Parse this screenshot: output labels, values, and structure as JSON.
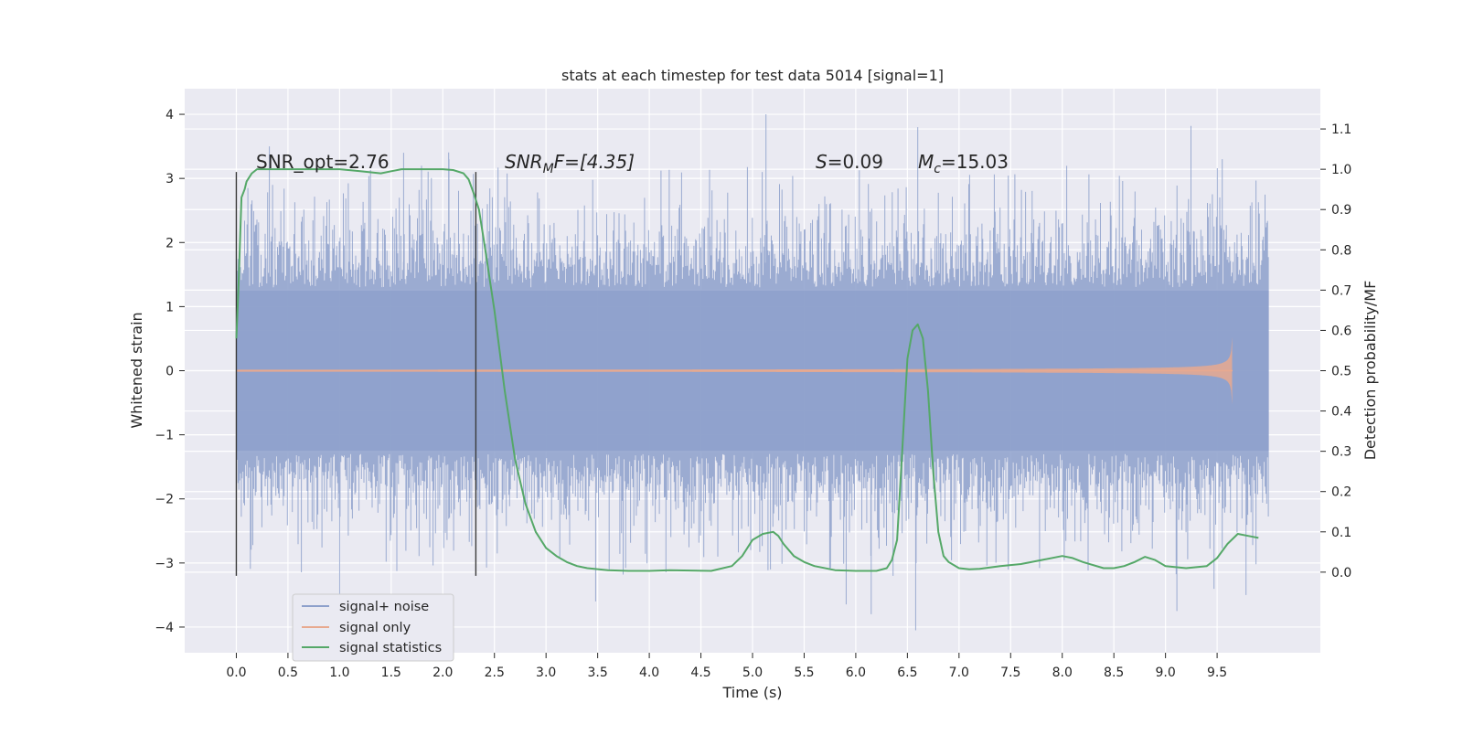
{
  "chart_data": {
    "type": "line",
    "title": "stats at each timestep for test data 5014 [signal=1]",
    "xlabel": "Time (s)",
    "ylabel": "Whitened strain",
    "ylabel_right": "Detection probability/MF",
    "xlim": [
      -0.5,
      10.5
    ],
    "ylim": [
      -4.4,
      4.4
    ],
    "ylim_right": [
      -0.2,
      1.2
    ],
    "grid": true,
    "legend_placement": "lower-left",
    "x_ticks": [
      "0.0",
      "0.5",
      "1.0",
      "1.5",
      "2.0",
      "2.5",
      "3.0",
      "3.5",
      "4.0",
      "4.5",
      "5.0",
      "5.5",
      "6.0",
      "6.5",
      "7.0",
      "7.5",
      "8.0",
      "8.5",
      "9.0",
      "9.5"
    ],
    "y_ticks_left": [
      "−4",
      "−3",
      "−2",
      "−1",
      "0",
      "1",
      "2",
      "3",
      "4"
    ],
    "y_ticks_right": [
      "0.0",
      "0.1",
      "0.2",
      "0.3",
      "0.4",
      "0.5",
      "0.6",
      "0.7",
      "0.8",
      "0.9",
      "1.0",
      "1.1"
    ],
    "annotations": {
      "snr_opt": "SNR_opt=2.76",
      "snr_mf_sym": "SNR",
      "snr_mf_sub": "M",
      "snr_mf_rest": "F=[4.35]",
      "s_sym": "S",
      "s_rest": "=0.09",
      "mc_sym": "M",
      "mc_sub": "c",
      "mc_rest": "=15.03"
    },
    "vertical_markers": [
      0.0,
      2.32
    ],
    "series": [
      {
        "name": "signal+ noise",
        "color": "#8da0cb",
        "kind": "noise",
        "x_range": [
          0.0,
          10.0
        ],
        "envelope_core": 1.25,
        "peak_max": 4.0,
        "peak_min": -4.05
      },
      {
        "name": "signal only",
        "color": "#e8a98f",
        "kind": "chirp",
        "x_range": [
          0.0,
          9.65
        ],
        "amplitude_max": 0.58
      },
      {
        "name": "signal statistics",
        "color": "#55a868",
        "kind": "line",
        "axis": "right",
        "x": [
          0.0,
          0.02,
          0.05,
          0.08,
          0.1,
          0.15,
          0.2,
          0.3,
          0.5,
          0.8,
          1.0,
          1.2,
          1.4,
          1.5,
          1.6,
          1.8,
          2.0,
          2.1,
          2.2,
          2.25,
          2.3,
          2.35,
          2.4,
          2.5,
          2.6,
          2.7,
          2.8,
          2.9,
          3.0,
          3.1,
          3.2,
          3.3,
          3.4,
          3.6,
          3.8,
          4.0,
          4.2,
          4.4,
          4.6,
          4.8,
          4.9,
          5.0,
          5.1,
          5.2,
          5.25,
          5.3,
          5.4,
          5.5,
          5.6,
          5.8,
          6.0,
          6.2,
          6.3,
          6.35,
          6.4,
          6.45,
          6.5,
          6.55,
          6.6,
          6.65,
          6.7,
          6.75,
          6.8,
          6.85,
          6.9,
          7.0,
          7.1,
          7.2,
          7.4,
          7.6,
          7.8,
          8.0,
          8.1,
          8.2,
          8.4,
          8.5,
          8.6,
          8.7,
          8.8,
          8.9,
          9.0,
          9.2,
          9.4,
          9.5,
          9.6,
          9.7,
          9.8,
          9.9
        ],
        "values": [
          0.58,
          0.7,
          0.93,
          0.95,
          0.97,
          0.99,
          1.0,
          1.0,
          1.0,
          1.0,
          1.0,
          0.995,
          0.99,
          0.995,
          1.0,
          1.0,
          1.0,
          0.998,
          0.99,
          0.975,
          0.94,
          0.9,
          0.82,
          0.65,
          0.45,
          0.28,
          0.17,
          0.1,
          0.06,
          0.04,
          0.025,
          0.015,
          0.01,
          0.005,
          0.003,
          0.003,
          0.005,
          0.004,
          0.003,
          0.015,
          0.04,
          0.08,
          0.095,
          0.1,
          0.09,
          0.07,
          0.04,
          0.025,
          0.015,
          0.005,
          0.003,
          0.003,
          0.01,
          0.03,
          0.08,
          0.3,
          0.53,
          0.6,
          0.615,
          0.58,
          0.45,
          0.25,
          0.1,
          0.04,
          0.025,
          0.01,
          0.007,
          0.008,
          0.015,
          0.02,
          0.03,
          0.04,
          0.035,
          0.025,
          0.01,
          0.01,
          0.015,
          0.025,
          0.038,
          0.03,
          0.015,
          0.01,
          0.015,
          0.035,
          0.07,
          0.095,
          0.09,
          0.085
        ]
      }
    ]
  }
}
